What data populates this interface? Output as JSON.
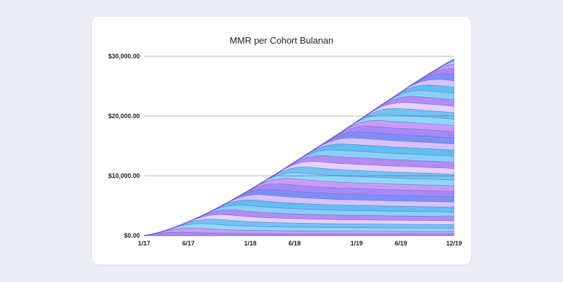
{
  "chart_data": {
    "type": "area",
    "stacked": true,
    "title": "MMR per Cohort Bulanan",
    "xlabel": "",
    "ylabel": "",
    "x_range": [
      "2017-01",
      "2019-12"
    ],
    "x_ticks": [
      {
        "label": "1/17",
        "month": "2017-01"
      },
      {
        "label": "6/17",
        "month": "2017-06"
      },
      {
        "label": "1/18",
        "month": "2018-01"
      },
      {
        "label": "6/18",
        "month": "2018-06"
      },
      {
        "label": "1/19",
        "month": "2019-01"
      },
      {
        "label": "6/19",
        "month": "2019-06"
      },
      {
        "label": "12/19",
        "month": "2019-12"
      }
    ],
    "ylim": [
      0,
      30000
    ],
    "y_ticks": [
      {
        "label": "$0.00",
        "value": 0
      },
      {
        "label": "$10,000.00",
        "value": 10000
      },
      {
        "label": "$20,000.00",
        "value": 20000
      },
      {
        "label": "$30,000.00",
        "value": 30000
      }
    ],
    "grid": "horizontal",
    "legend": "none",
    "series_count": 36,
    "total_mmr": [
      0,
      250,
      650,
      1150,
      1700,
      2300,
      2950,
      3650,
      4400,
      5200,
      6000,
      6850,
      7700,
      8600,
      9500,
      10400,
      11350,
      12300,
      13250,
      14200,
      15150,
      16100,
      17050,
      18050,
      19050,
      20050,
      21050,
      22050,
      23000,
      24000,
      25000,
      25950,
      26900,
      27800,
      28700,
      29500
    ],
    "palette": [
      "#7d8ff5",
      "#a58af5",
      "#c89cf3",
      "#8fd8f7",
      "#6ec4f2",
      "#e3d2fb",
      "#b48bf0",
      "#8ad0f5",
      "#5ec0ef",
      "#d6c3fb"
    ]
  }
}
